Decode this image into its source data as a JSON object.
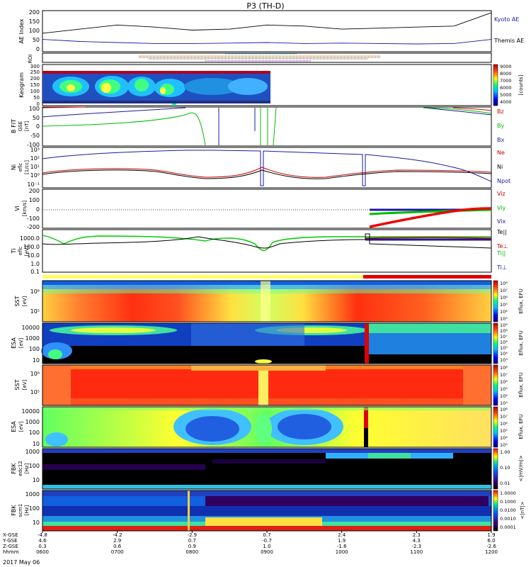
{
  "title": "P3 (TH-D)",
  "date": "2017 May 06",
  "time_axis": {
    "ticks": [
      "0600",
      "0700",
      "0800",
      "0900",
      "1000",
      "1100",
      "1200"
    ],
    "rows": [
      {
        "label": "X-GSE",
        "values": [
          "-4.8",
          "-4.2",
          "-2.9",
          "0.7",
          "2.4",
          "2.3",
          "1.9"
        ]
      },
      {
        "label": "Y-GSE",
        "values": [
          "4.6",
          "2.9",
          "0.7",
          "-0.7",
          "1.9",
          "4.3",
          "6.0"
        ]
      },
      {
        "label": "Z-GSE",
        "values": [
          "0.3",
          "0.6",
          "0.9",
          "1.0",
          "-1.6",
          "-2.3",
          "-2.6"
        ]
      },
      {
        "label": "hhmm",
        "values": [
          "0600",
          "0700",
          "0800",
          "0900",
          "1000",
          "1100",
          "1200"
        ]
      }
    ]
  },
  "panels": {
    "ae": {
      "ylabel": "AE Index",
      "yticks": [
        "200",
        "150",
        "100",
        "50",
        "0"
      ],
      "legend": [
        {
          "name": "Kyoto AE",
          "color": "#1a1aa0"
        },
        {
          "name": "Themis AE",
          "color": "#000000"
        }
      ]
    },
    "roi": {
      "ylabel": "ROI"
    },
    "keogram": {
      "ylabel": "Keogram",
      "yticks": [
        "300",
        "250",
        "200",
        "150",
        "100",
        "50",
        "0"
      ],
      "cbar_ticks": [
        "9000",
        "8000",
        "7000",
        "6000",
        "5000",
        "4000"
      ],
      "cbar_label": "[counts]"
    },
    "bfit": {
      "ylabel": "B FIT",
      "ylabel2": "GSE",
      "ylabel3": "[nT]",
      "yticks": [
        "100",
        "50",
        "0",
        "-50",
        "-100"
      ],
      "legend": [
        {
          "name": "Bz",
          "color": "#cc0000"
        },
        {
          "name": "By",
          "color": "#00bb00"
        },
        {
          "name": "Bx",
          "color": "#1a1aa0"
        }
      ]
    },
    "ni": {
      "ylabel": "Ni",
      "ylabel2": "eflc",
      "ylabel3": "[1/cc]",
      "yticks": [
        "10³",
        "10²",
        "10¹",
        "10⁰",
        "10⁻¹"
      ],
      "legend": [
        {
          "name": "Ne",
          "color": "#cc0000"
        },
        {
          "name": "Ni",
          "color": "#000000"
        },
        {
          "name": "Npot",
          "color": "#1a1aa0"
        }
      ]
    },
    "vi": {
      "ylabel": "Vi",
      "ylabel2": "[km/s]",
      "yticks": [
        "200",
        "100",
        "0",
        "-100",
        "-200"
      ],
      "legend": [
        {
          "name": "Viz",
          "color": "#cc0000"
        },
        {
          "name": "Viy",
          "color": "#00bb00"
        },
        {
          "name": "Vix",
          "color": "#1a1aa0"
        }
      ]
    },
    "ti": {
      "ylabel": "Ti",
      "ylabel2": "eflc",
      "ylabel3": "[eV]",
      "yticks": [
        "1000.0",
        "100.0",
        "10.0",
        "1.0",
        "0.1"
      ],
      "legend": [
        {
          "name": "Te||",
          "color": "#000000"
        },
        {
          "name": "Te⊥",
          "color": "#cc0000"
        },
        {
          "name": "Ti||",
          "color": "#00bb00"
        },
        {
          "name": "Ti⊥",
          "color": "#1a1aa0"
        }
      ]
    },
    "sst1": {
      "ylabel": "SST",
      "ylabel2": "[eV]",
      "yticks": [
        "10⁶",
        "10⁵"
      ],
      "cbar_ticks": [
        "10⁸",
        "10⁷",
        "10⁶",
        "10⁵",
        "10⁴",
        "10³"
      ],
      "cbar_label": "Eflux, EFU"
    },
    "esa1": {
      "ylabel": "ESA",
      "ylabel2": "[eV]",
      "yticks": [
        "10000",
        "1000",
        "100",
        "10"
      ],
      "cbar_ticks": [
        "10⁹",
        "10⁸",
        "10⁷",
        "10⁶",
        "10⁵",
        "10⁴",
        "10³"
      ],
      "cbar_label": "Eflux, EFU"
    },
    "sst2": {
      "ylabel": "SST",
      "ylabel2": "[eV]",
      "yticks": [
        "10⁶",
        "10⁵"
      ],
      "cbar_ticks": [
        "10⁸",
        "10⁷",
        "10⁶",
        "10⁵",
        "10⁴",
        "10³"
      ],
      "cbar_label": "Eflux, EFU"
    },
    "esa2": {
      "ylabel": "ESA",
      "ylabel2": "[eV]",
      "yticks": [
        "10000",
        "1000",
        "100",
        "10"
      ],
      "cbar_ticks": [
        "10⁸",
        "10⁷",
        "10⁶",
        "10⁵",
        "10⁴",
        "10³"
      ],
      "cbar_label": "Eflux, EFU"
    },
    "fbk1": {
      "ylabel": "FBK",
      "ylabel2": "edc12",
      "ylabel3": "[Hz]",
      "yticks": [
        "1000",
        "100",
        "10"
      ],
      "cbar_ticks": [
        "1.00",
        "0.10",
        "0.01"
      ],
      "cbar_label": "<|mV/m|>"
    },
    "fbk2": {
      "ylabel": "FBK",
      "ylabel2": "scm1",
      "ylabel3": "[Hz]",
      "yticks": [
        "1000",
        "100",
        "10"
      ],
      "cbar_ticks": [
        "1.0000",
        "0.1000",
        "0.0100",
        "0.0010",
        "0.0001"
      ],
      "cbar_label": "<|nT|>"
    }
  },
  "chart_data": {
    "type": "line",
    "title": "P3 (TH-D)",
    "x": [
      "0600",
      "0630",
      "0700",
      "0730",
      "0800",
      "0830",
      "0900",
      "0930",
      "1000",
      "1030",
      "1100",
      "1130",
      "1200"
    ],
    "series": [
      {
        "name": "Kyoto AE",
        "values": [
          60,
          50,
          45,
          40,
          40,
          42,
          45,
          40,
          42,
          40,
          38,
          40,
          60
        ]
      },
      {
        "name": "Themis AE",
        "values": [
          90,
          110,
          130,
          120,
          105,
          110,
          130,
          125,
          110,
          115,
          120,
          125,
          190
        ]
      }
    ],
    "ylabel": "AE Index",
    "ylim": [
      0,
      200
    ]
  }
}
